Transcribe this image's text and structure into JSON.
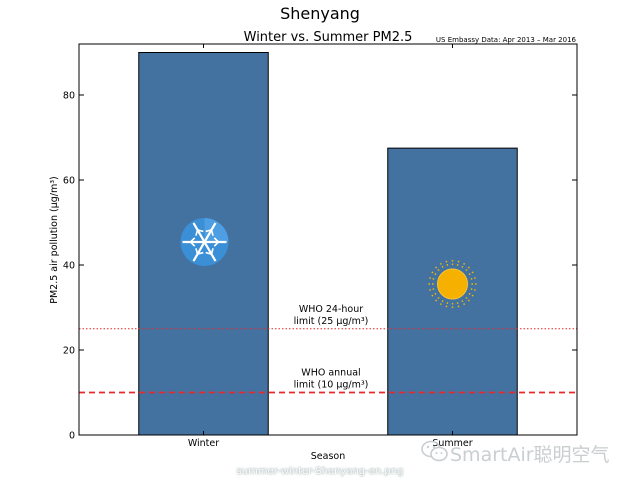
{
  "chart_data": {
    "type": "bar",
    "title": "Shenyang",
    "subtitle": "Winter vs. Summer PM2.5",
    "source_note": "US Embassy Data: Apr 2013 – Mar 2016",
    "categories": [
      "Winter",
      "Summer"
    ],
    "values": [
      90,
      67.5
    ],
    "bar_color": "#4472a0",
    "xlabel": "Season",
    "ylabel": "PM2.5 air pollution (μg/m³)",
    "ylim": [
      0,
      92
    ],
    "yticks": [
      0,
      20,
      40,
      60,
      80
    ],
    "reference_lines": [
      {
        "value": 25,
        "label_line1": "WHO 24-hour",
        "label_line2": "limit (25 μg/m³)",
        "style": "dotted",
        "color": "#e8282a"
      },
      {
        "value": 10,
        "label_line1": "WHO annual",
        "label_line2": "limit (10 μg/m³)",
        "style": "dashed",
        "color": "#e8282a"
      }
    ],
    "icons": [
      "snowflake-icon",
      "sun-icon"
    ],
    "grid": false,
    "legend": "none"
  },
  "footer": {
    "caption": "summer-winter-Shenyang-en.png"
  },
  "watermark": {
    "text": "SmartAir聪明空气",
    "icon": "wechat-icon"
  }
}
